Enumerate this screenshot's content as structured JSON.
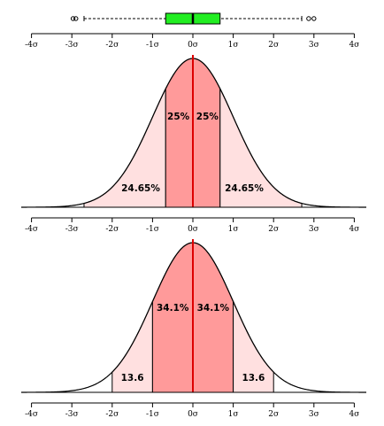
{
  "tick_labels": [
    "-4σ",
    "-3σ",
    "-2σ",
    "-1σ",
    "0σ",
    "1σ",
    "2σ",
    "3σ",
    "4σ"
  ],
  "colors": {
    "inner_fill": "#ff9a9a",
    "outer_fill": "#ffe0e0",
    "box_fill": "#22ee22",
    "center_line": "#dd0000",
    "stroke": "#000000"
  },
  "boxplot": {
    "median": 0,
    "q1": -0.6745,
    "q3": 0.6745,
    "whisker_low": -2.698,
    "whisker_high": 2.698,
    "outliers": [
      -2.97,
      -2.9,
      2.87,
      3.0
    ]
  },
  "panel_quartiles": {
    "boundaries": [
      -2.698,
      -0.6745,
      0,
      0.6745,
      2.698
    ],
    "inner_left_label": "25%",
    "inner_right_label": "25%",
    "outer_left_label": "24.65%",
    "outer_right_label": "24.65%"
  },
  "panel_sigma": {
    "boundaries": [
      -2,
      -1,
      0,
      1,
      2
    ],
    "inner_left_label": "34.1%",
    "inner_right_label": "34.1%",
    "outer_left_label": "13.6",
    "outer_right_label": "13.6"
  }
}
